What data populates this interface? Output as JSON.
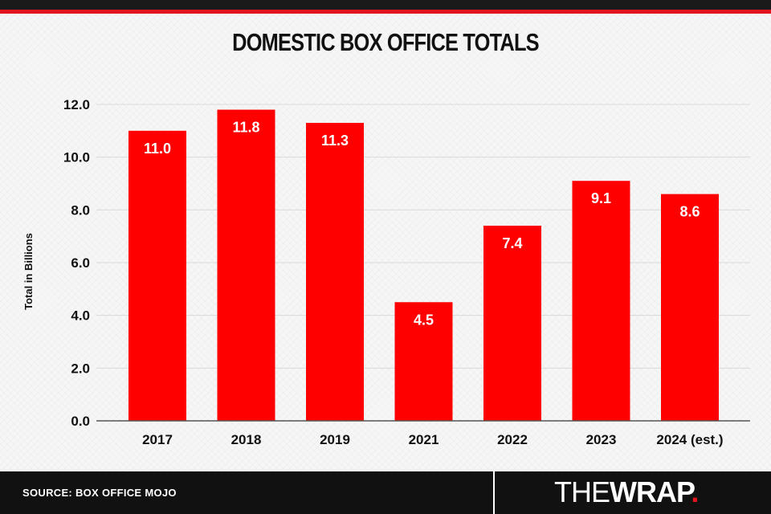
{
  "chart_data": {
    "type": "bar",
    "title": "DOMESTIC BOX OFFICE TOTALS",
    "ylabel": "Total in Billions",
    "xlabel": "",
    "categories": [
      "2017",
      "2018",
      "2019",
      "2021",
      "2022",
      "2023",
      "2024 (est.)"
    ],
    "values": [
      11.0,
      11.8,
      11.3,
      4.5,
      7.4,
      9.1,
      8.6
    ],
    "data_labels": [
      "11.0",
      "11.8",
      "11.3",
      "4.5",
      "7.4",
      "9.1",
      "8.6"
    ],
    "ylim": [
      0,
      12
    ],
    "yticks": [
      "0.0",
      "2.0",
      "4.0",
      "6.0",
      "8.0",
      "10.0",
      "12.0"
    ],
    "grid": true,
    "legend": "none",
    "bar_color": "#ff0000"
  },
  "footer": {
    "source": "SOURCE: BOX OFFICE MOJO",
    "brand_part1": "THE",
    "brand_part2": "WRAP",
    "brand_dot": "."
  },
  "colors": {
    "accent": "#e2141d",
    "bar": "#ff0000",
    "footer_bg": "#111111"
  }
}
